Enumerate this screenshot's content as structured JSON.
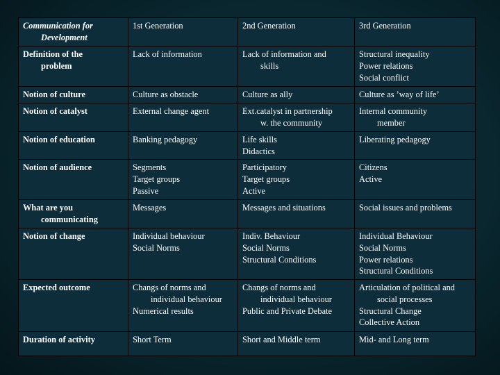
{
  "header": [
    "Communication for Development",
    "1st Generation",
    "2nd Generation",
    "3rd Generation"
  ],
  "rows": [
    {
      "label": "Definition of the problem",
      "c1": "Lack of information",
      "c2": "Lack of information and skills",
      "c3": [
        "Structural inequality",
        "Power relations",
        "Social conflict"
      ]
    },
    {
      "label": "Notion of culture",
      "c1": "Culture as obstacle",
      "c2": "Culture as ally",
      "c3": "Culture as ’way of life’"
    },
    {
      "label": "Notion of catalyst",
      "c1": "External change agent",
      "c2": "Ext.catalyst in partnership w. the community",
      "c3": "Internal community member"
    },
    {
      "label": "Notion of education",
      "c1": "Banking pedagogy",
      "c2": [
        "Life skills",
        "Didactics"
      ],
      "c3": "Liberating pedagogy"
    },
    {
      "label": "Notion of audience",
      "c1": [
        "Segments",
        "Target groups",
        "Passive"
      ],
      "c2": [
        "Participatory",
        "Target groups",
        "Active"
      ],
      "c3": [
        "Citizens",
        "Active"
      ]
    },
    {
      "label": "What are you communicating",
      "c1": "Messages",
      "c2": "Messages and situations",
      "c3": "Social issues and problems"
    },
    {
      "label": "Notion of change",
      "c1": [
        "Individual behaviour",
        "Social Norms"
      ],
      "c2": [
        "Indiv. Behaviour",
        "Social Norms",
        "Structural Conditions"
      ],
      "c3": [
        "Individual Behaviour",
        "Social Norms",
        "Power relations",
        "Structural Conditions"
      ]
    },
    {
      "label": "Expected outcome",
      "c1": [
        "Changs of norms and individual behaviour",
        "Numerical results"
      ],
      "c2": [
        "Changs of norms and individual behaviour",
        "Public and Private Debate"
      ],
      "c3": [
        "Articulation of political and social processes",
        "Structural Change",
        "Collective Action"
      ]
    },
    {
      "label": "Duration of activity",
      "c1": "Short Term",
      "c2": "Short and Middle term",
      "c3": "Mid- and Long term"
    }
  ]
}
